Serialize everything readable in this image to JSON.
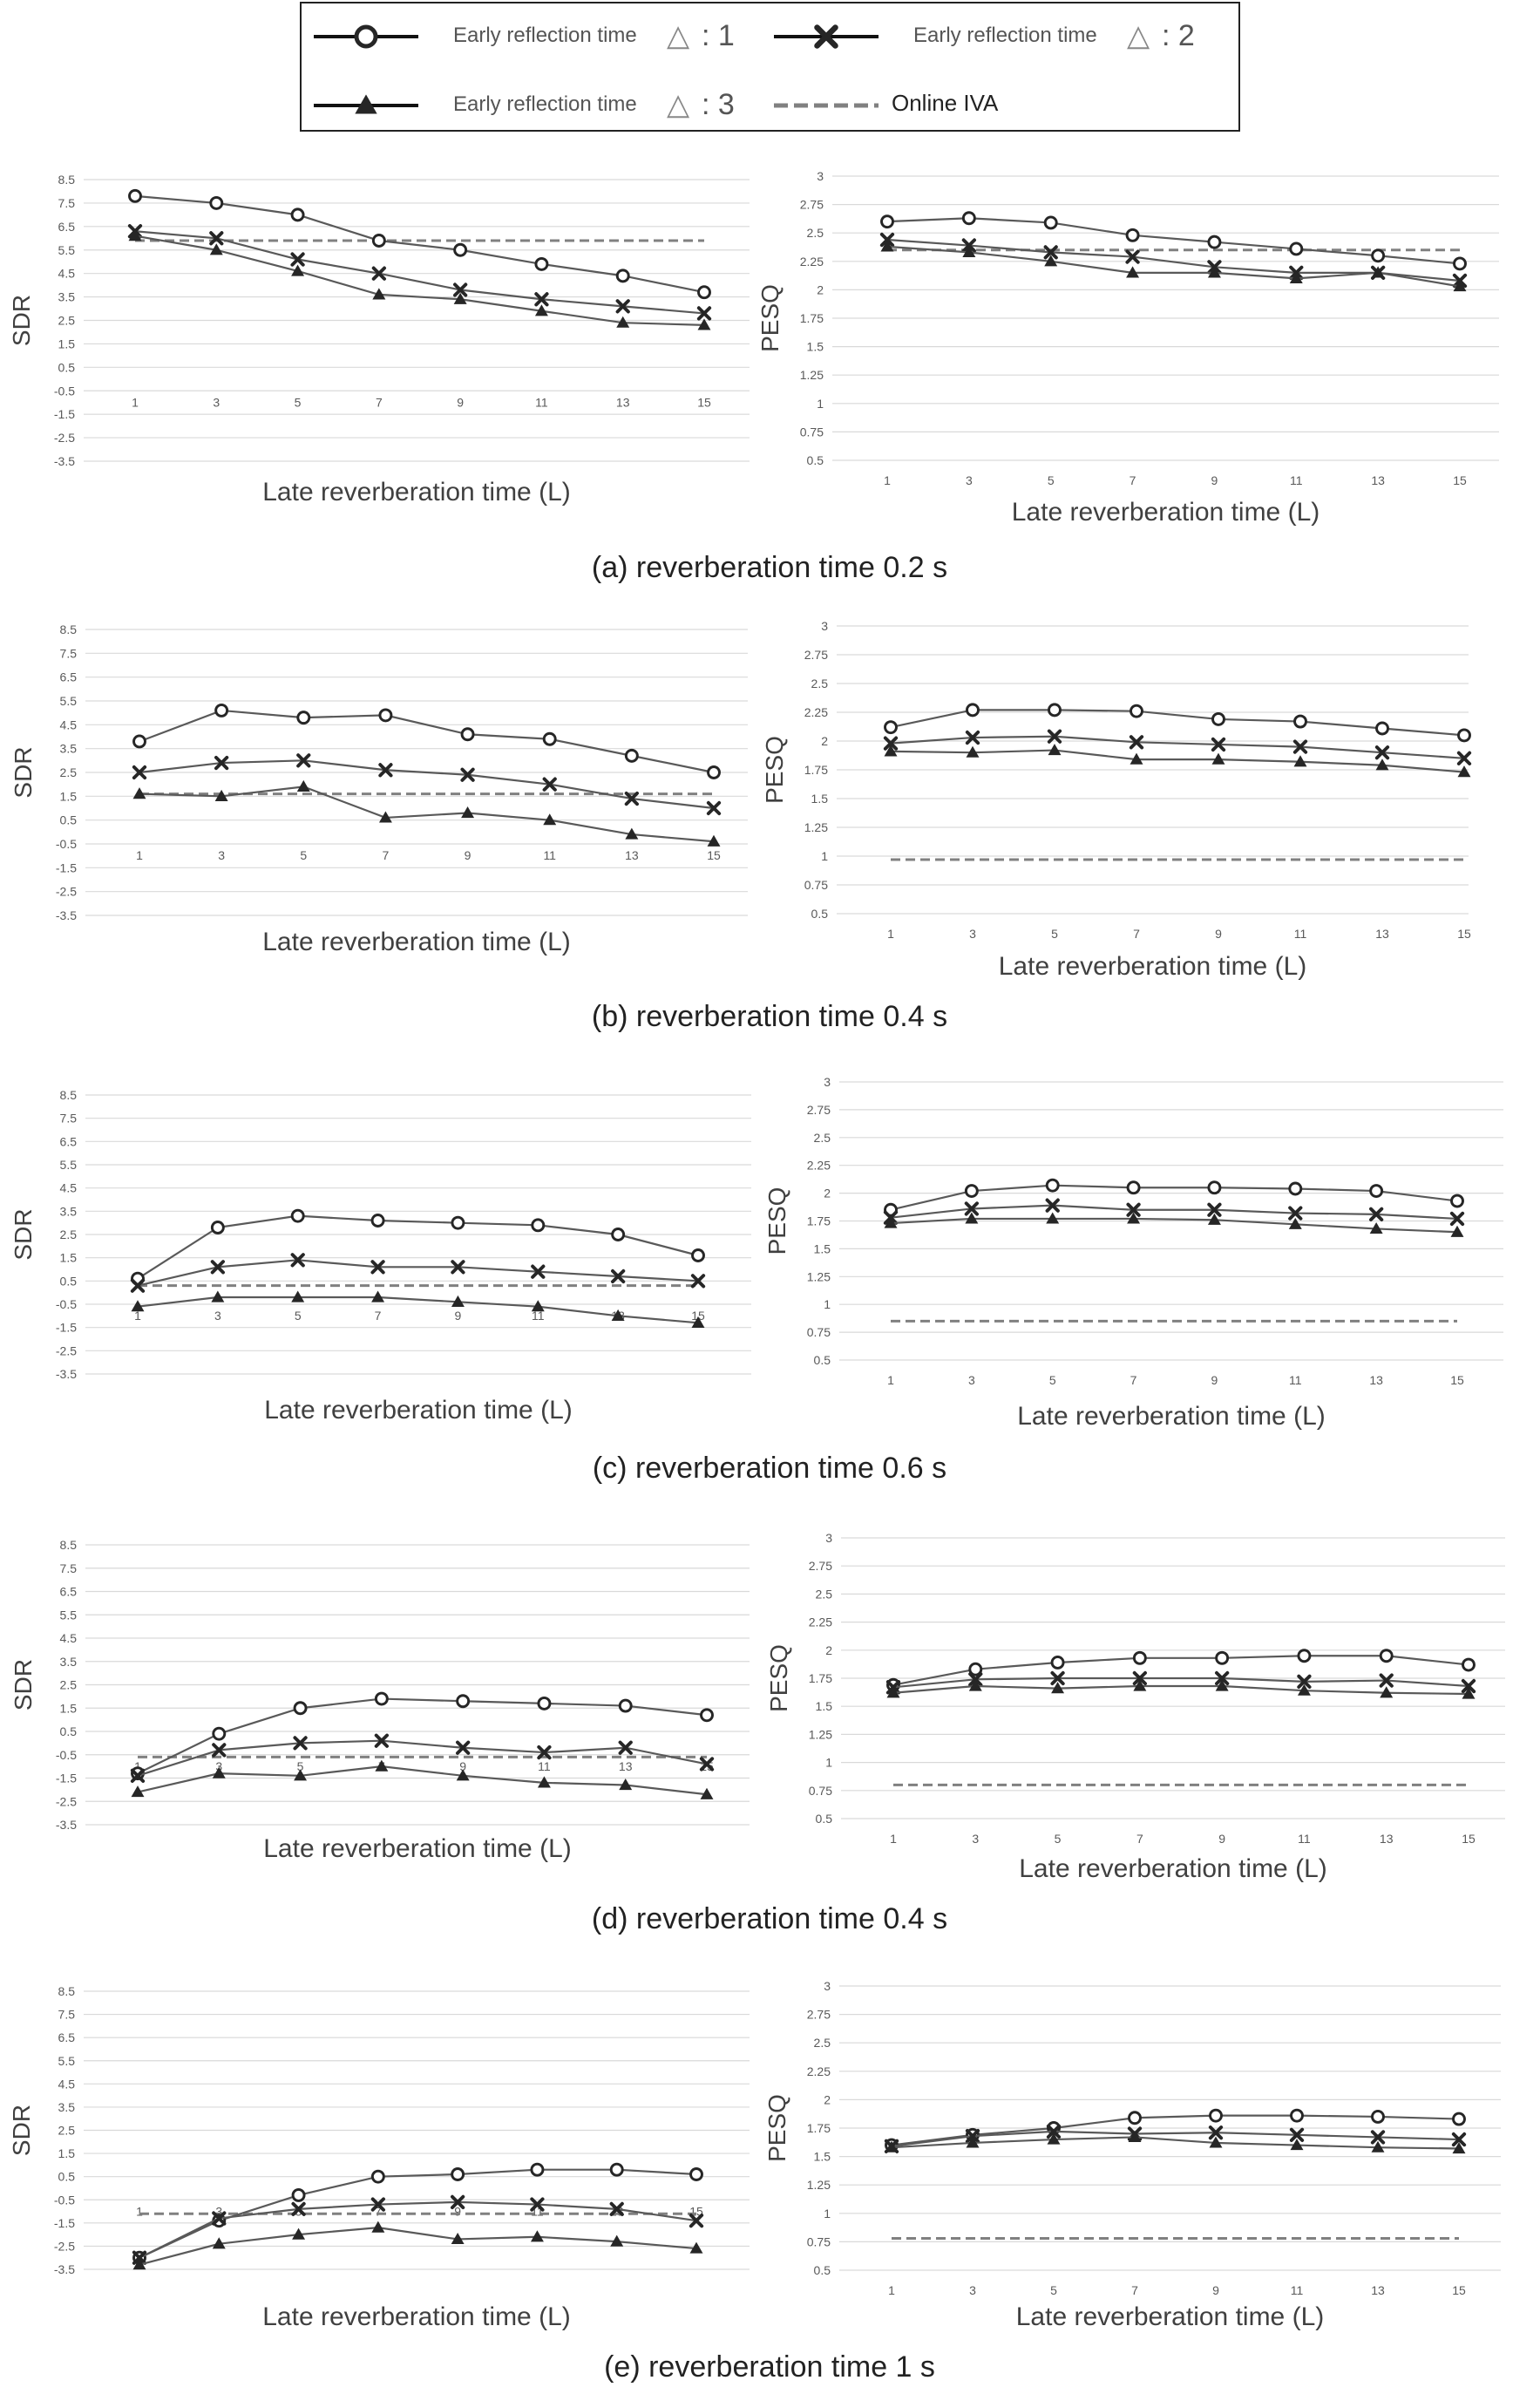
{
  "legend": {
    "items": [
      {
        "label": "Early reflection time",
        "symbol": "△",
        "value": ": 1",
        "marker": "circle",
        "style": "solid"
      },
      {
        "label": "Early reflection time",
        "symbol": "△",
        "value": ": 2",
        "marker": "x",
        "style": "solid"
      },
      {
        "label": "Early reflection time",
        "symbol": "△",
        "value": ": 3",
        "marker": "triangle",
        "style": "solid"
      },
      {
        "label": "Online IVA",
        "symbol": "",
        "value": "",
        "marker": "none",
        "style": "dashed"
      }
    ]
  },
  "colors": {
    "series_line": "#595959",
    "marker": "#262626",
    "grid": "#d9d9d9",
    "dashed": "#808080",
    "tick": "#595959",
    "label": "#404040"
  },
  "x_ticks": [
    "1",
    "3",
    "5",
    "7",
    "9",
    "11",
    "13",
    "15"
  ],
  "sdr_ticks": [
    "8.5",
    "7.5",
    "6.5",
    "5.5",
    "4.5",
    "3.5",
    "2.5",
    "1.5",
    "0.5",
    "-0.5",
    "-1.5",
    "-2.5",
    "-3.5"
  ],
  "pesq_ticks": [
    "3",
    "2.75",
    "2.5",
    "2.25",
    "2",
    "1.75",
    "1.5",
    "1.25",
    "1",
    "0.75",
    "0.5"
  ],
  "chart_data": [
    {
      "type": "line",
      "panel": "a",
      "caption": "(a) reverberation time 0.2 s",
      "metric": "SDR",
      "xlabel": "Late reverberation time (L)",
      "ylabel": "SDR",
      "ylim": [
        -3.5,
        8.5
      ],
      "x": [
        1,
        3,
        5,
        7,
        9,
        11,
        13,
        15
      ],
      "series": [
        {
          "values": [
            7.8,
            7.5,
            7.0,
            5.9,
            5.5,
            4.9,
            4.4,
            3.7
          ]
        },
        {
          "values": [
            6.3,
            6.0,
            5.1,
            4.5,
            3.8,
            3.4,
            3.1,
            2.8
          ]
        },
        {
          "values": [
            6.1,
            5.5,
            4.6,
            3.6,
            3.4,
            2.9,
            2.4,
            2.3
          ]
        }
      ],
      "reference": 5.9
    },
    {
      "type": "line",
      "panel": "a",
      "metric": "PESQ",
      "xlabel": "Late reverberation time (L)",
      "ylabel": "PESQ",
      "ylim": [
        0.5,
        3
      ],
      "x": [
        1,
        3,
        5,
        7,
        9,
        11,
        13,
        15
      ],
      "series": [
        {
          "values": [
            2.6,
            2.63,
            2.59,
            2.48,
            2.42,
            2.36,
            2.3,
            2.23
          ]
        },
        {
          "values": [
            2.44,
            2.39,
            2.33,
            2.29,
            2.2,
            2.15,
            2.15,
            2.08
          ]
        },
        {
          "values": [
            2.38,
            2.33,
            2.25,
            2.15,
            2.15,
            2.1,
            2.15,
            2.03
          ]
        }
      ],
      "reference": 2.35
    },
    {
      "type": "line",
      "panel": "b",
      "caption": "(b) reverberation time 0.4 s",
      "metric": "SDR",
      "xlabel": "Late reverberation time (L)",
      "ylabel": "SDR",
      "ylim": [
        -3.5,
        8.5
      ],
      "x": [
        1,
        3,
        5,
        7,
        9,
        11,
        13,
        15
      ],
      "series": [
        {
          "values": [
            3.8,
            5.1,
            4.8,
            4.9,
            4.1,
            3.9,
            3.2,
            2.5
          ]
        },
        {
          "values": [
            2.5,
            2.9,
            3.0,
            2.6,
            2.4,
            2.0,
            1.4,
            1.0
          ]
        },
        {
          "values": [
            1.6,
            1.5,
            1.9,
            0.6,
            0.8,
            0.5,
            -0.1,
            -0.4
          ]
        }
      ],
      "reference": 1.6
    },
    {
      "type": "line",
      "panel": "b",
      "metric": "PESQ",
      "xlabel": "Late reverberation time (L)",
      "ylabel": "PESQ",
      "ylim": [
        0.5,
        3
      ],
      "x": [
        1,
        3,
        5,
        7,
        9,
        11,
        13,
        15
      ],
      "series": [
        {
          "values": [
            2.12,
            2.27,
            2.27,
            2.26,
            2.19,
            2.17,
            2.11,
            2.05
          ]
        },
        {
          "values": [
            1.98,
            2.03,
            2.04,
            1.99,
            1.97,
            1.95,
            1.9,
            1.85
          ]
        },
        {
          "values": [
            1.91,
            1.9,
            1.92,
            1.84,
            1.84,
            1.82,
            1.79,
            1.73
          ]
        }
      ],
      "reference": 0.97
    },
    {
      "type": "line",
      "panel": "c",
      "caption": "(c) reverberation time 0.6 s",
      "metric": "SDR",
      "xlabel": "Late reverberation time (L)",
      "ylabel": "SDR",
      "ylim": [
        -3.5,
        8.5
      ],
      "x": [
        1,
        3,
        5,
        7,
        9,
        11,
        13,
        15
      ],
      "series": [
        {
          "values": [
            0.6,
            2.8,
            3.3,
            3.1,
            3.0,
            2.9,
            2.5,
            1.6
          ]
        },
        {
          "values": [
            0.3,
            1.1,
            1.4,
            1.1,
            1.1,
            0.9,
            0.7,
            0.5
          ]
        },
        {
          "values": [
            -0.6,
            -0.2,
            -0.2,
            -0.2,
            -0.4,
            -0.6,
            -1.0,
            -1.3
          ]
        }
      ],
      "reference": 0.3
    },
    {
      "type": "line",
      "panel": "c",
      "metric": "PESQ",
      "xlabel": "Late reverberation time (L)",
      "ylabel": "PESQ",
      "ylim": [
        0.5,
        3
      ],
      "x": [
        1,
        3,
        5,
        7,
        9,
        11,
        13,
        15
      ],
      "series": [
        {
          "values": [
            1.85,
            2.02,
            2.07,
            2.05,
            2.05,
            2.04,
            2.02,
            1.93
          ]
        },
        {
          "values": [
            1.78,
            1.86,
            1.89,
            1.85,
            1.85,
            1.82,
            1.81,
            1.77
          ]
        },
        {
          "values": [
            1.73,
            1.77,
            1.77,
            1.77,
            1.76,
            1.72,
            1.68,
            1.65
          ]
        }
      ],
      "reference": 0.85
    },
    {
      "type": "line",
      "panel": "d",
      "caption": "(d) reverberation time 0.4 s",
      "metric": "SDR",
      "xlabel": "Late reverberation time (L)",
      "ylabel": "SDR",
      "ylim": [
        -3.5,
        8.5
      ],
      "x": [
        1,
        3,
        5,
        7,
        9,
        11,
        13,
        15
      ],
      "series": [
        {
          "values": [
            -1.3,
            0.4,
            1.5,
            1.9,
            1.8,
            1.7,
            1.6,
            1.2
          ]
        },
        {
          "values": [
            -1.4,
            -0.3,
            0.0,
            0.1,
            -0.2,
            -0.4,
            -0.2,
            -0.9
          ]
        },
        {
          "values": [
            -2.1,
            -1.3,
            -1.4,
            -1.0,
            -1.4,
            -1.7,
            -1.8,
            -2.2
          ]
        }
      ],
      "reference": -0.6
    },
    {
      "type": "line",
      "panel": "d",
      "metric": "PESQ",
      "xlabel": "Late reverberation time (L)",
      "ylabel": "PESQ",
      "ylim": [
        0.5,
        3
      ],
      "x": [
        1,
        3,
        5,
        7,
        9,
        11,
        13,
        15
      ],
      "series": [
        {
          "values": [
            1.69,
            1.83,
            1.89,
            1.93,
            1.93,
            1.95,
            1.95,
            1.87
          ]
        },
        {
          "values": [
            1.67,
            1.74,
            1.75,
            1.75,
            1.75,
            1.72,
            1.73,
            1.68
          ]
        },
        {
          "values": [
            1.62,
            1.68,
            1.66,
            1.68,
            1.68,
            1.64,
            1.62,
            1.61
          ]
        }
      ],
      "reference": 0.8
    },
    {
      "type": "line",
      "panel": "e",
      "caption": "(e) reverberation time 1 s",
      "metric": "SDR",
      "xlabel": "Late reverberation time (L)",
      "ylabel": "SDR",
      "ylim": [
        -3.5,
        8.5
      ],
      "x": [
        1,
        3,
        5,
        7,
        9,
        11,
        13,
        15
      ],
      "series": [
        {
          "values": [
            -3.0,
            -1.4,
            -0.3,
            0.5,
            0.6,
            0.8,
            0.8,
            0.6
          ]
        },
        {
          "values": [
            -3.0,
            -1.3,
            -0.9,
            -0.7,
            -0.6,
            -0.7,
            -0.9,
            -1.4
          ]
        },
        {
          "values": [
            -3.3,
            -2.4,
            -2.0,
            -1.7,
            -2.2,
            -2.1,
            -2.3,
            -2.6
          ]
        }
      ],
      "reference": -1.1
    },
    {
      "type": "line",
      "panel": "e",
      "metric": "PESQ",
      "xlabel": "Late reverberation time (L)",
      "ylabel": "PESQ",
      "ylim": [
        0.5,
        3
      ],
      "x": [
        1,
        3,
        5,
        7,
        9,
        11,
        13,
        15
      ],
      "series": [
        {
          "values": [
            1.6,
            1.69,
            1.75,
            1.84,
            1.86,
            1.86,
            1.85,
            1.83
          ]
        },
        {
          "values": [
            1.59,
            1.68,
            1.72,
            1.7,
            1.71,
            1.69,
            1.67,
            1.65
          ]
        },
        {
          "values": [
            1.58,
            1.62,
            1.65,
            1.67,
            1.62,
            1.6,
            1.58,
            1.57
          ]
        }
      ],
      "reference": 0.78
    }
  ]
}
